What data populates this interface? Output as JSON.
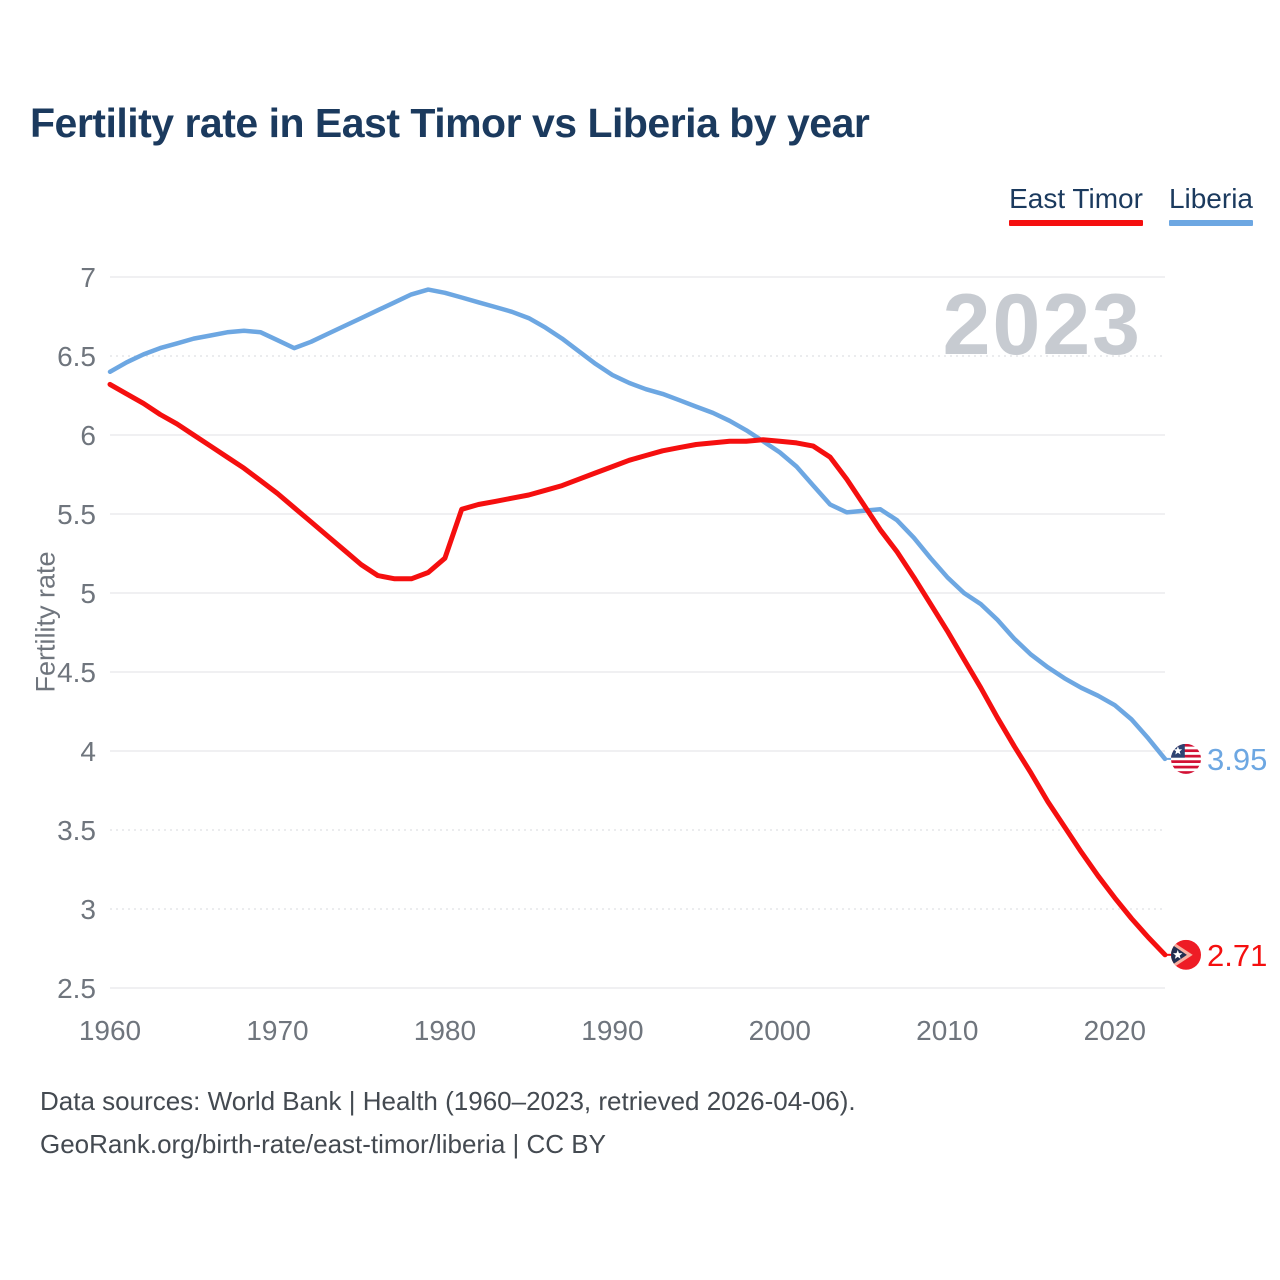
{
  "title": "Fertility rate in East Timor vs Liberia by year",
  "watermark_year": "2023",
  "yaxis_title": "Fertility rate",
  "legend": [
    {
      "label": "East Timor",
      "color": "#f50f0f"
    },
    {
      "label": "Liberia",
      "color": "#6da7e2"
    }
  ],
  "footer": {
    "line1": "Data sources: World Bank | Health (1960–2023, retrieved 2026-04-06).",
    "line2": "GeoRank.org/birth-rate/east-timor/liberia | CC BY"
  },
  "chart_data": {
    "type": "line",
    "title": "Fertility rate in East Timor vs Liberia by year",
    "xlabel": "",
    "ylabel": "Fertility rate",
    "x_range": [
      1960,
      2023
    ],
    "ylim": [
      2.3,
      7.1
    ],
    "xticks": [
      1960,
      1970,
      1980,
      1990,
      2000,
      2010,
      2020
    ],
    "yticks": [
      7,
      6.5,
      6,
      5.5,
      5,
      4.5,
      4,
      3.5,
      3,
      2.5
    ],
    "grid_dotted": [
      6.5,
      3.5,
      3
    ],
    "legend_position": "top-right",
    "x": [
      1960,
      1961,
      1962,
      1963,
      1964,
      1965,
      1966,
      1967,
      1968,
      1969,
      1970,
      1971,
      1972,
      1973,
      1974,
      1975,
      1976,
      1977,
      1978,
      1979,
      1980,
      1981,
      1982,
      1983,
      1984,
      1985,
      1986,
      1987,
      1988,
      1989,
      1990,
      1991,
      1992,
      1993,
      1994,
      1995,
      1996,
      1997,
      1998,
      1999,
      2000,
      2001,
      2002,
      2003,
      2004,
      2005,
      2006,
      2007,
      2008,
      2009,
      2010,
      2011,
      2012,
      2013,
      2014,
      2015,
      2016,
      2017,
      2018,
      2019,
      2020,
      2021,
      2022,
      2023
    ],
    "series": [
      {
        "name": "East Timor",
        "color": "#f50f0f",
        "line_width": 5,
        "flag": "east-timor",
        "end_value": "2.71",
        "values": [
          6.32,
          6.26,
          6.2,
          6.13,
          6.07,
          6.0,
          5.93,
          5.86,
          5.79,
          5.71,
          5.63,
          5.54,
          5.45,
          5.36,
          5.27,
          5.18,
          5.11,
          5.09,
          5.09,
          5.13,
          5.22,
          5.53,
          5.56,
          5.58,
          5.6,
          5.62,
          5.65,
          5.68,
          5.72,
          5.76,
          5.8,
          5.84,
          5.87,
          5.9,
          5.92,
          5.94,
          5.95,
          5.96,
          5.96,
          5.97,
          5.96,
          5.95,
          5.93,
          5.86,
          5.72,
          5.56,
          5.4,
          5.26,
          5.1,
          4.93,
          4.76,
          4.58,
          4.4,
          4.21,
          4.03,
          3.86,
          3.68,
          3.52,
          3.36,
          3.21,
          3.07,
          2.94,
          2.82,
          2.71
        ]
      },
      {
        "name": "Liberia",
        "color": "#6da7e2",
        "line_width": 4.5,
        "flag": "liberia",
        "end_value": "3.95",
        "values": [
          6.4,
          6.46,
          6.51,
          6.55,
          6.58,
          6.61,
          6.63,
          6.65,
          6.66,
          6.65,
          6.6,
          6.55,
          6.59,
          6.64,
          6.69,
          6.74,
          6.79,
          6.84,
          6.89,
          6.92,
          6.9,
          6.87,
          6.84,
          6.81,
          6.78,
          6.74,
          6.68,
          6.61,
          6.53,
          6.45,
          6.38,
          6.33,
          6.29,
          6.26,
          6.22,
          6.18,
          6.14,
          6.09,
          6.03,
          5.96,
          5.89,
          5.8,
          5.68,
          5.56,
          5.51,
          5.52,
          5.53,
          5.46,
          5.35,
          5.22,
          5.1,
          5.0,
          4.93,
          4.83,
          4.71,
          4.61,
          4.53,
          4.46,
          4.4,
          4.35,
          4.29,
          4.2,
          4.08,
          3.95
        ]
      }
    ]
  }
}
